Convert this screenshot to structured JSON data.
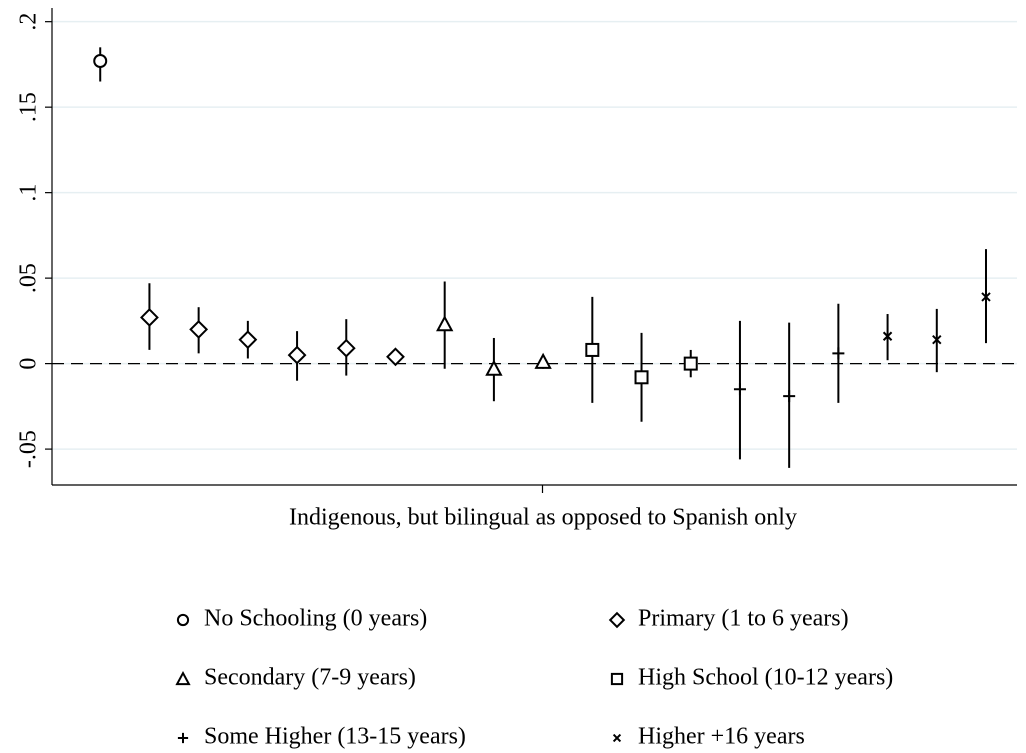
{
  "chart_data": {
    "type": "errorbar",
    "xlabel": "Indigenous, but bilingual as opposed to Spanish only",
    "xlim": [
      0.02,
      19.63
    ],
    "ylim": [
      -0.071,
      0.208
    ],
    "yticks": [
      {
        "value": -0.05,
        "label": "-.05"
      },
      0,
      {
        "value": 0.05,
        "label": ".05"
      },
      {
        "value": 0.1,
        "label": ".1"
      },
      {
        "value": 0.15,
        "label": ".15"
      },
      {
        "value": 0.2,
        "label": ".2"
      }
    ],
    "grid": true,
    "reference_line": 0,
    "series": [
      {
        "name": "No Schooling (0 years)",
        "marker": "circle",
        "color": "#000000",
        "x": [
          1
        ],
        "values": [
          0.177
        ],
        "ci_low": [
          0.165
        ],
        "ci_high": [
          0.185
        ]
      },
      {
        "name": "Primary (1 to 6 years)",
        "marker": "diamond",
        "color": "#000000",
        "x": [
          2,
          3,
          4,
          5,
          6,
          7
        ],
        "values": [
          0.027,
          0.02,
          0.014,
          0.005,
          0.009,
          0.004
        ],
        "ci_low": [
          0.008,
          0.006,
          0.003,
          -0.01,
          -0.007,
          0.001
        ],
        "ci_high": [
          0.047,
          0.033,
          0.025,
          0.019,
          0.026,
          0.007
        ]
      },
      {
        "name": "Secondary (7-9 years)",
        "marker": "triangle",
        "color": "#000000",
        "x": [
          8,
          9,
          10
        ],
        "values": [
          0.023,
          -0.003,
          0.001
        ],
        "ci_low": [
          -0.003,
          -0.022,
          -0.003
        ],
        "ci_high": [
          0.048,
          0.015,
          0.004
        ]
      },
      {
        "name": "High School (10-12 years)",
        "marker": "square",
        "color": "#000000",
        "x": [
          11,
          12,
          13
        ],
        "values": [
          0.008,
          -0.008,
          0
        ],
        "ci_low": [
          -0.023,
          -0.034,
          -0.008
        ],
        "ci_high": [
          0.039,
          0.018,
          0.008
        ]
      },
      {
        "name": "Some Higher (13-15 years)",
        "marker": "plus",
        "color": "#000000",
        "x": [
          14,
          15,
          16
        ],
        "values": [
          -0.015,
          -0.019,
          0.006
        ],
        "ci_low": [
          -0.056,
          -0.061,
          -0.023
        ],
        "ci_high": [
          0.025,
          0.024,
          0.035
        ]
      },
      {
        "name": "Higher +16 years",
        "marker": "x",
        "color": "#000000",
        "x": [
          17,
          18,
          19
        ],
        "values": [
          0.016,
          0.014,
          0.039
        ],
        "ci_low": [
          0.002,
          -0.005,
          0.012
        ],
        "ci_high": [
          0.029,
          0.032,
          0.067
        ]
      }
    ]
  }
}
